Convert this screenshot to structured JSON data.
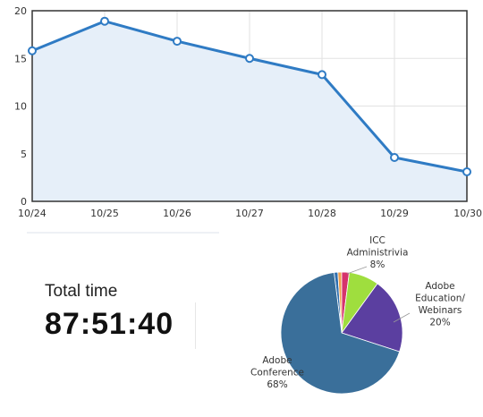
{
  "colors": {
    "line": "#2f7bc4",
    "area": "#e6eff9",
    "grid": "#e2e2e2",
    "frame": "#333333",
    "point_fill": "#ffffff"
  },
  "chart_data": [
    {
      "type": "line",
      "title": "",
      "xlabel": "",
      "ylabel": "",
      "area_fill": true,
      "grid": true,
      "legend": "none",
      "categories": [
        "10/24",
        "10/25",
        "10/26",
        "10/27",
        "10/28",
        "10/29",
        "10/30"
      ],
      "series": [
        {
          "values": [
            15.8,
            18.9,
            16.8,
            15.0,
            13.3,
            4.6,
            3.1
          ]
        }
      ],
      "ylim": [
        0,
        20
      ],
      "yticks": [
        0,
        5,
        10,
        15,
        20
      ]
    },
    {
      "type": "pie",
      "title": "",
      "legend": "none",
      "slices": [
        {
          "label": "Adobe Conference",
          "lines": [
            "Adobe",
            "Conference",
            "68%"
          ],
          "value": 68,
          "color": "#3a6f9a"
        },
        {
          "label": "Adobe Education/ Webinars",
          "lines": [
            "Adobe",
            "Education/",
            "Webinars",
            "20%"
          ],
          "value": 20,
          "color": "#5b3fa0"
        },
        {
          "label": "ICC Administrivia",
          "lines": [
            "ICC",
            "Administrivia",
            "8%"
          ],
          "value": 8,
          "color": "#9fde3e"
        },
        {
          "label": "",
          "lines": [],
          "value": 2,
          "color": "#d6336c"
        },
        {
          "label": "",
          "lines": [],
          "value": 1,
          "color": "#f2a04b"
        },
        {
          "label": "",
          "lines": [],
          "value": 1,
          "color": "#2f6faf"
        }
      ]
    }
  ],
  "summary": {
    "total_label": "Total time",
    "total_value": "87:51:40"
  }
}
